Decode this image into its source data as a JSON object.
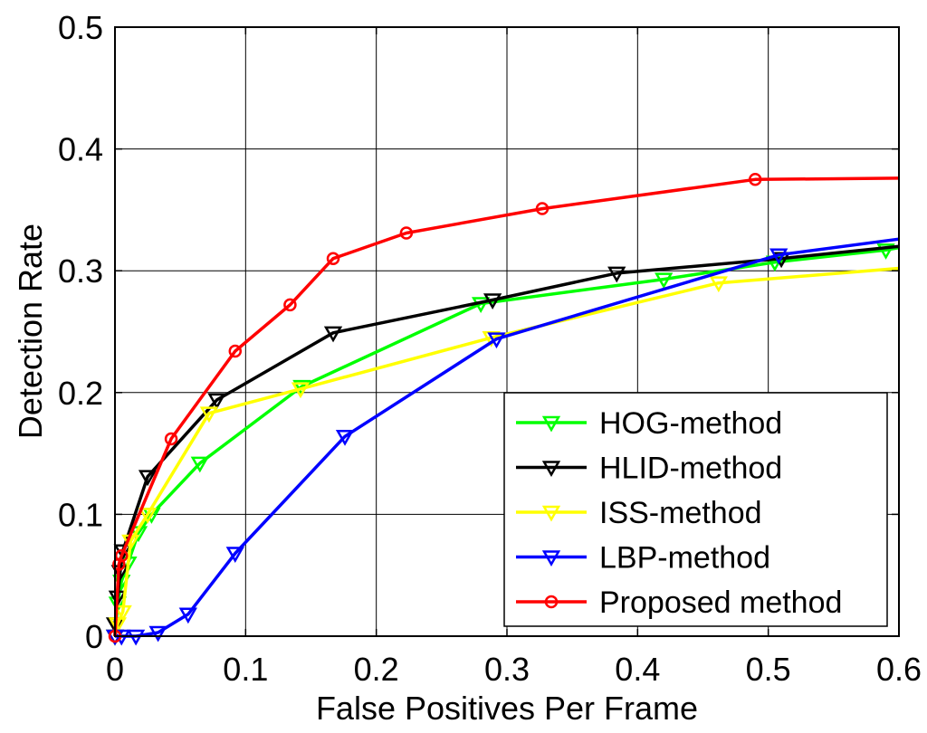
{
  "chart_data": {
    "type": "line",
    "title": "",
    "xlabel": "False Positives Per Frame",
    "ylabel": "Detection Rate",
    "xlim": [
      0,
      0.6
    ],
    "ylim": [
      0,
      0.5
    ],
    "xticks": [
      0,
      0.1,
      0.2,
      0.3,
      0.4,
      0.5,
      0.6
    ],
    "yticks": [
      0,
      0.1,
      0.2,
      0.3,
      0.4,
      0.5
    ],
    "xtick_labels": [
      "0",
      "0.1",
      "0.2",
      "0.3",
      "0.4",
      "0.5",
      "0.6"
    ],
    "ytick_labels": [
      "0",
      "0.1",
      "0.2",
      "0.3",
      "0.4",
      "0.5"
    ],
    "grid": true,
    "legend_position": "bottom-right",
    "series": [
      {
        "name": "HOG-method",
        "color": "#00ff00",
        "marker": "triangle-down",
        "x": [
          0.0,
          0.002,
          0.005,
          0.01,
          0.018,
          0.028,
          0.065,
          0.143,
          0.28,
          0.42,
          0.505,
          0.59,
          0.6
        ],
        "y": [
          0.0,
          0.027,
          0.045,
          0.06,
          0.085,
          0.1,
          0.142,
          0.205,
          0.273,
          0.293,
          0.307,
          0.317,
          0.319
        ]
      },
      {
        "name": "HLID-method",
        "color": "#000000",
        "marker": "triangle-down",
        "x": [
          0.0,
          0.0,
          0.002,
          0.004,
          0.006,
          0.025,
          0.078,
          0.167,
          0.289,
          0.384,
          0.51,
          0.6
        ],
        "y": [
          0.0,
          0.01,
          0.032,
          0.053,
          0.07,
          0.131,
          0.194,
          0.249,
          0.276,
          0.298,
          0.31,
          0.32
        ]
      },
      {
        "name": "ISS-method",
        "color": "#ffff00",
        "marker": "triangle-down",
        "x": [
          0.0,
          0.002,
          0.006,
          0.012,
          0.025,
          0.072,
          0.142,
          0.288,
          0.462,
          0.6
        ],
        "y": [
          0.0,
          0.01,
          0.02,
          0.078,
          0.1,
          0.183,
          0.203,
          0.245,
          0.29,
          0.302
        ]
      },
      {
        "name": "LBP-method",
        "color": "#0000ff",
        "marker": "triangle-down",
        "x": [
          0.0,
          0.005,
          0.016,
          0.033,
          0.056,
          0.092,
          0.176,
          0.292,
          0.508,
          0.6
        ],
        "y": [
          0.0,
          0.0,
          0.0,
          0.003,
          0.018,
          0.068,
          0.164,
          0.244,
          0.313,
          0.326
        ]
      },
      {
        "name": "Proposed method",
        "color": "#ff0000",
        "marker": "circle",
        "x": [
          0.0,
          0.003,
          0.005,
          0.043,
          0.092,
          0.134,
          0.167,
          0.223,
          0.327,
          0.49,
          0.6
        ],
        "y": [
          0.0,
          0.059,
          0.066,
          0.162,
          0.234,
          0.272,
          0.31,
          0.331,
          0.351,
          0.375,
          0.376
        ]
      }
    ]
  }
}
